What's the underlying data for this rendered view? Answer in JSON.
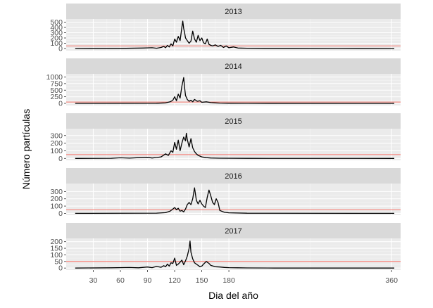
{
  "chart_data": {
    "type": "line",
    "xlabel": "Dia del año",
    "ylabel": "Número partículas",
    "xlim": [
      0,
      370
    ],
    "x_ticks": [
      30,
      60,
      90,
      120,
      150,
      180,
      360
    ],
    "grid": true,
    "colors": {
      "line": "#000000",
      "threshold": "#f8766d",
      "panel_bg": "#ebebeb",
      "strip_bg": "#d9d9d9",
      "grid_major": "#ffffff",
      "grid_minor": "#f5f5f5",
      "axis_text": "#4d4d4d",
      "title_text": "#000000"
    },
    "panels": [
      {
        "year": "2013",
        "ylim": [
          -40,
          560
        ],
        "y_ticks": [
          0,
          100,
          200,
          300,
          400,
          500
        ],
        "threshold": 50,
        "x": [
          10,
          60,
          85,
          95,
          100,
          105,
          108,
          110,
          112,
          114,
          116,
          118,
          120,
          122,
          124,
          126,
          128,
          129,
          130,
          131,
          132,
          134,
          136,
          138,
          140,
          142,
          144,
          146,
          148,
          150,
          152,
          154,
          156,
          158,
          160,
          162,
          165,
          168,
          171,
          174,
          177,
          180,
          185,
          190,
          200,
          220,
          250,
          300,
          363
        ],
        "y": [
          0,
          3,
          10,
          15,
          5,
          20,
          40,
          15,
          60,
          30,
          90,
          50,
          180,
          120,
          230,
          150,
          400,
          520,
          380,
          300,
          200,
          150,
          100,
          140,
          330,
          180,
          120,
          250,
          150,
          200,
          110,
          90,
          180,
          80,
          60,
          50,
          70,
          40,
          60,
          20,
          50,
          15,
          30,
          10,
          5,
          3,
          2,
          1,
          0
        ]
      },
      {
        "year": "2014",
        "ylim": [
          -80,
          1120
        ],
        "y_ticks": [
          0,
          250,
          500,
          750,
          1000
        ],
        "threshold": 50,
        "x": [
          10,
          100,
          110,
          115,
          118,
          120,
          122,
          124,
          126,
          128,
          130,
          131,
          132,
          134,
          136,
          138,
          140,
          142,
          145,
          148,
          150,
          155,
          160,
          165,
          170,
          180,
          200,
          363
        ],
        "y": [
          0,
          5,
          20,
          60,
          120,
          250,
          100,
          350,
          200,
          650,
          980,
          600,
          300,
          150,
          80,
          120,
          60,
          150,
          80,
          100,
          40,
          60,
          30,
          20,
          10,
          5,
          2,
          0
        ]
      },
      {
        "year": "2015",
        "ylim": [
          -25,
          390
        ],
        "y_ticks": [
          0,
          100,
          200,
          300
        ],
        "threshold": 50,
        "x": [
          10,
          50,
          60,
          70,
          80,
          90,
          95,
          100,
          105,
          110,
          113,
          116,
          118,
          120,
          122,
          124,
          126,
          128,
          130,
          132,
          133,
          134,
          136,
          138,
          140,
          142,
          144,
          146,
          148,
          150,
          155,
          160,
          170,
          200,
          363
        ],
        "y": [
          0,
          2,
          8,
          4,
          10,
          15,
          5,
          12,
          20,
          60,
          40,
          100,
          80,
          210,
          120,
          240,
          100,
          200,
          280,
          230,
          330,
          250,
          150,
          260,
          140,
          90,
          60,
          40,
          30,
          20,
          10,
          5,
          3,
          1,
          0
        ]
      },
      {
        "year": "2016",
        "ylim": [
          -25,
          410
        ],
        "y_ticks": [
          0,
          100,
          200,
          300
        ],
        "threshold": 50,
        "x": [
          10,
          100,
          110,
          115,
          118,
          120,
          122,
          124,
          126,
          128,
          130,
          132,
          134,
          136,
          138,
          140,
          142,
          144,
          146,
          148,
          150,
          152,
          154,
          156,
          158,
          160,
          162,
          164,
          166,
          168,
          170,
          175,
          180,
          200,
          363
        ],
        "y": [
          0,
          3,
          10,
          30,
          60,
          80,
          50,
          70,
          30,
          40,
          20,
          60,
          120,
          150,
          120,
          200,
          350,
          180,
          130,
          180,
          130,
          100,
          80,
          220,
          320,
          240,
          150,
          120,
          200,
          150,
          40,
          15,
          8,
          2,
          0
        ]
      },
      {
        "year": "2017",
        "ylim": [
          -15,
          225
        ],
        "y_ticks": [
          0,
          50,
          100,
          150,
          200
        ],
        "threshold": 50,
        "x": [
          10,
          50,
          70,
          80,
          90,
          95,
          100,
          105,
          108,
          110,
          112,
          114,
          116,
          118,
          120,
          122,
          124,
          126,
          128,
          130,
          132,
          134,
          136,
          137,
          138,
          140,
          142,
          144,
          146,
          148,
          150,
          152,
          155,
          158,
          160,
          165,
          170,
          175,
          180,
          190,
          200,
          230,
          363
        ],
        "y": [
          0,
          2,
          4,
          2,
          8,
          3,
          12,
          6,
          18,
          10,
          30,
          15,
          40,
          35,
          75,
          20,
          30,
          45,
          60,
          25,
          55,
          90,
          150,
          205,
          120,
          70,
          40,
          30,
          20,
          10,
          15,
          30,
          50,
          35,
          20,
          10,
          8,
          5,
          3,
          2,
          1,
          0,
          0
        ]
      }
    ]
  }
}
